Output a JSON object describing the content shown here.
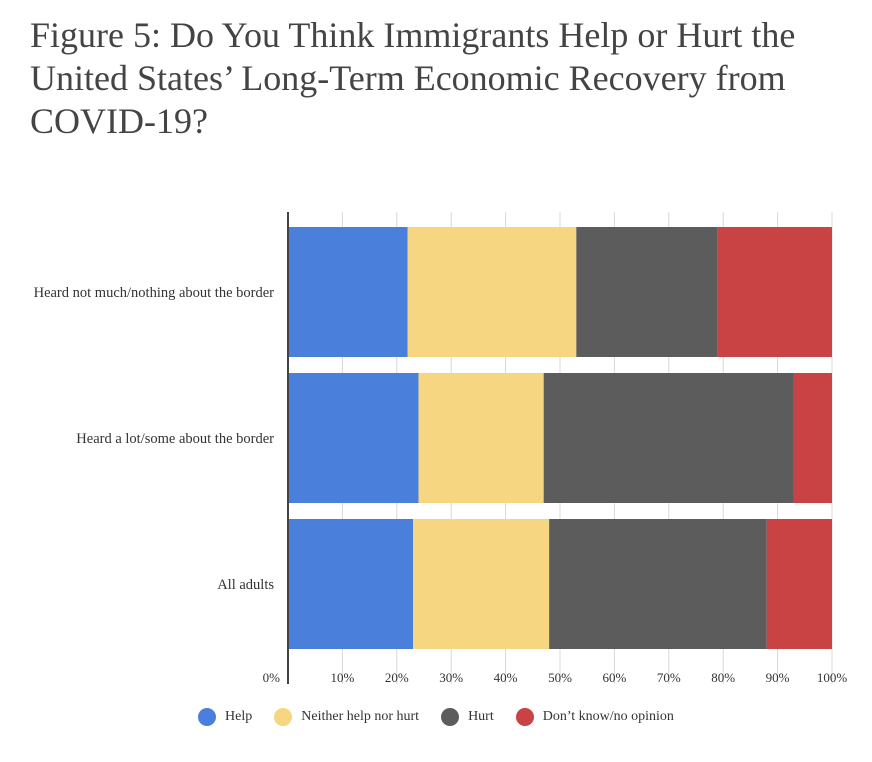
{
  "chart_data": {
    "type": "bar",
    "orientation": "horizontal",
    "stacked": true,
    "title": "Figure 5: Do You Think Immigrants Help or Hurt the United States’ Long-Term Economic Recovery from COVID-19?",
    "categories": [
      "Heard not much/nothing about the border",
      "Heard a lot/some about the border",
      "All adults"
    ],
    "series": [
      {
        "name": "Help",
        "color": "#4a7fdc",
        "values": [
          22,
          24,
          23
        ]
      },
      {
        "name": "Neither help nor hurt",
        "color": "#f6d680",
        "values": [
          31,
          23,
          25
        ]
      },
      {
        "name": "Hurt",
        "color": "#5b5c5b",
        "values": [
          26,
          46,
          40
        ]
      },
      {
        "name": "Don’t know/no opinion",
        "color": "#c94244",
        "values": [
          21,
          7,
          12
        ]
      }
    ],
    "xlim": [
      0,
      100
    ],
    "xticks": [
      "0%",
      "10%",
      "20%",
      "30%",
      "40%",
      "50%",
      "60%",
      "70%",
      "80%",
      "90%",
      "100%"
    ],
    "grid": true,
    "legend": "bottom-center"
  }
}
